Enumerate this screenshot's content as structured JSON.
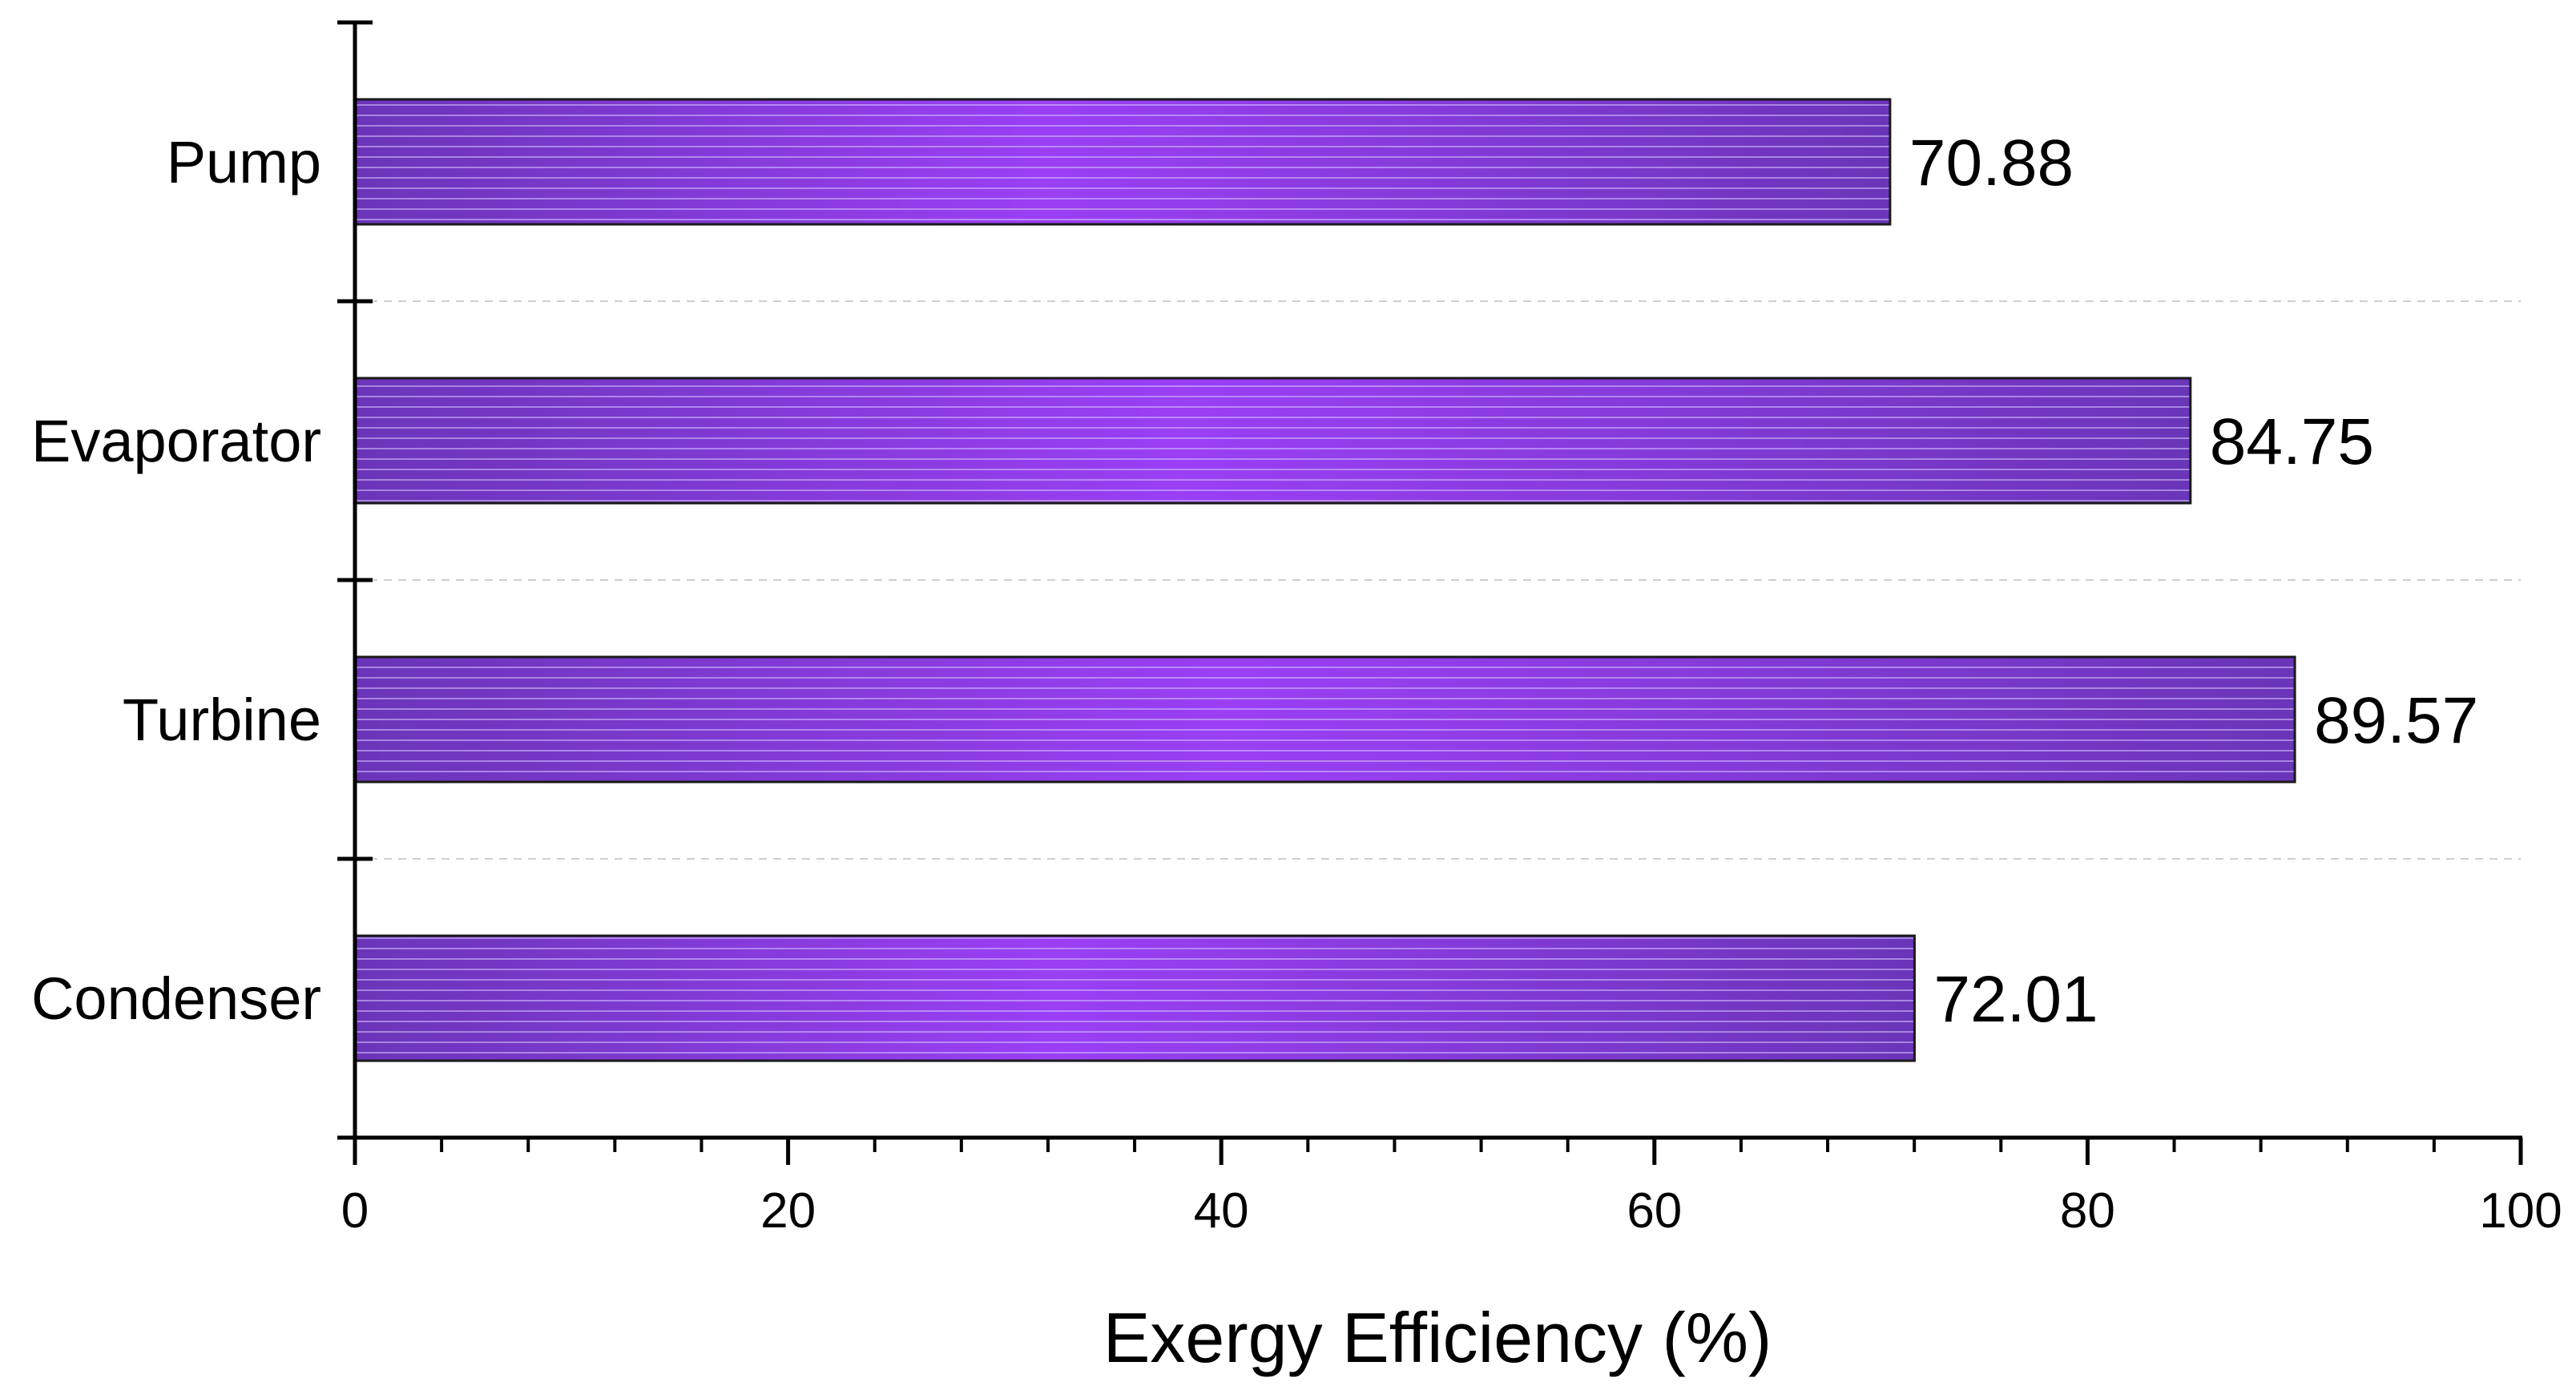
{
  "chart_data": {
    "type": "bar",
    "orientation": "horizontal",
    "title": "",
    "xlabel": "Exergy Efficiency (%)",
    "ylabel": "",
    "xlim": [
      0,
      100
    ],
    "x_major_ticks": [
      0,
      20,
      40,
      60,
      80,
      100
    ],
    "x_tick_labels": [
      "0",
      "20",
      "40",
      "60",
      "80",
      "100"
    ],
    "x_minor_step": 4,
    "categories": [
      "Pump",
      "Evaporator",
      "Turbine",
      "Condenser"
    ],
    "values": [
      70.88,
      84.75,
      89.57,
      72.01
    ],
    "data_labels": [
      "70.88",
      "84.75",
      "89.57",
      "72.01"
    ],
    "grid": "horizontal dashed separators between categories",
    "legend": "none",
    "colors": {
      "bar_center": "#9B3FF5",
      "bar_edge": "#6A35B8",
      "bar_stripe": "#D9C4FF",
      "bar_outline": "#1a1a1a",
      "axis": "#000000",
      "grid": "#cfcfcf"
    }
  }
}
